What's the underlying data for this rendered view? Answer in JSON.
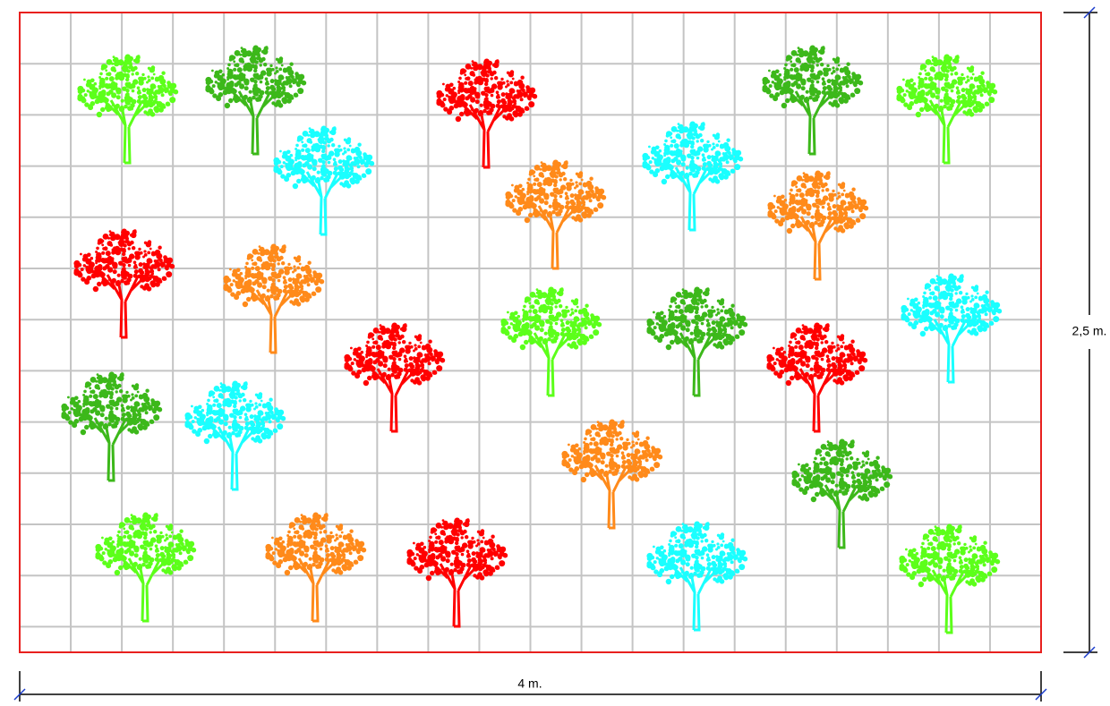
{
  "dimensions": {
    "height_label": "2,5 m.",
    "width_label": "4 m."
  }
}
